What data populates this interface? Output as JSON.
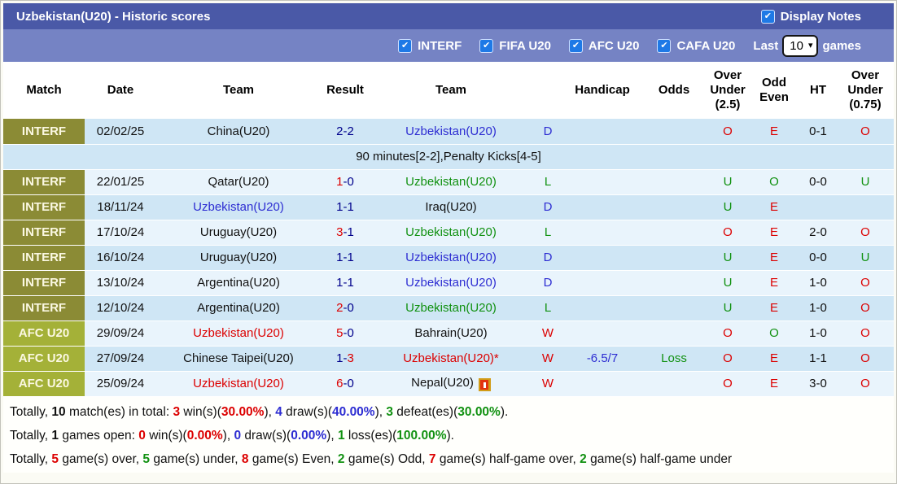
{
  "title_bar": {
    "title": "Uzbekistan(U20) - Historic scores",
    "display_notes_label": "Display Notes",
    "display_notes_checked": true
  },
  "filter_bar": {
    "filters": [
      {
        "label": "INTERF",
        "checked": true
      },
      {
        "label": "FIFA U20",
        "checked": true
      },
      {
        "label": "AFC U20",
        "checked": true
      },
      {
        "label": "CAFA U20",
        "checked": true
      }
    ],
    "last_label": "Last",
    "last_games_value": "10",
    "games_label": "games"
  },
  "colors": {
    "topbar": "#4a59a7",
    "filterbar": "#7583c4",
    "badge_interf": "#8b8b35",
    "badge_afc": "#a4b138",
    "row_blue": "#cfe6f5",
    "row_pale": "#e9f4fc",
    "win_red": "#dc0000",
    "loss_green": "#119111",
    "draw_blue": "#2d2dd2",
    "score_navy": "#00008c",
    "checkbox_blue": "#1e79e6"
  },
  "table": {
    "headers": [
      "Match",
      "Date",
      "Team",
      "Result",
      "Team",
      "",
      "Handicap",
      "Odds",
      "Over Under (2.5)",
      "Odd Even",
      "HT",
      "Over Under (0.75)"
    ],
    "rows": [
      {
        "bg": "blue",
        "badge": "INTERF",
        "badge_type": "interf",
        "date": "02/02/25",
        "team1": {
          "t": "China(U20)",
          "c": "black"
        },
        "score": {
          "h": "2",
          "a": "2",
          "hc": "navy",
          "ac": "navy"
        },
        "team2": {
          "t": "Uzbekistan(U20)",
          "c": "blue"
        },
        "wdl": {
          "t": "D",
          "c": "blue"
        },
        "handicap": {
          "t": "",
          "c": "blue"
        },
        "odds": {
          "t": "",
          "c": "green"
        },
        "ou25": {
          "t": "O",
          "c": "red"
        },
        "oddeven": {
          "t": "E",
          "c": "red"
        },
        "ht": "0-1",
        "ou075": {
          "t": "O",
          "c": "red"
        }
      },
      {
        "type": "note",
        "bg": "blue",
        "text": "90 minutes[2-2],Penalty Kicks[4-5]"
      },
      {
        "bg": "pale",
        "badge": "INTERF",
        "badge_type": "interf",
        "date": "22/01/25",
        "team1": {
          "t": "Qatar(U20)",
          "c": "black"
        },
        "score": {
          "h": "1",
          "a": "0",
          "hc": "red",
          "ac": "navy"
        },
        "team2": {
          "t": "Uzbekistan(U20)",
          "c": "green"
        },
        "wdl": {
          "t": "L",
          "c": "green"
        },
        "handicap": {
          "t": "",
          "c": "blue"
        },
        "odds": {
          "t": "",
          "c": "green"
        },
        "ou25": {
          "t": "U",
          "c": "green"
        },
        "oddeven": {
          "t": "O",
          "c": "green"
        },
        "ht": "0-0",
        "ou075": {
          "t": "U",
          "c": "green"
        }
      },
      {
        "bg": "blue",
        "badge": "INTERF",
        "badge_type": "interf",
        "date": "18/11/24",
        "team1": {
          "t": "Uzbekistan(U20)",
          "c": "blue"
        },
        "score": {
          "h": "1",
          "a": "1",
          "hc": "navy",
          "ac": "navy"
        },
        "team2": {
          "t": "Iraq(U20)",
          "c": "black"
        },
        "wdl": {
          "t": "D",
          "c": "blue"
        },
        "handicap": {
          "t": "",
          "c": "blue"
        },
        "odds": {
          "t": "",
          "c": "green"
        },
        "ou25": {
          "t": "U",
          "c": "green"
        },
        "oddeven": {
          "t": "E",
          "c": "red"
        },
        "ht": "",
        "ou075": {
          "t": "",
          "c": "red"
        }
      },
      {
        "bg": "pale",
        "badge": "INTERF",
        "badge_type": "interf",
        "date": "17/10/24",
        "team1": {
          "t": "Uruguay(U20)",
          "c": "black"
        },
        "score": {
          "h": "3",
          "a": "1",
          "hc": "red",
          "ac": "navy"
        },
        "team2": {
          "t": "Uzbekistan(U20)",
          "c": "green"
        },
        "wdl": {
          "t": "L",
          "c": "green"
        },
        "handicap": {
          "t": "",
          "c": "blue"
        },
        "odds": {
          "t": "",
          "c": "green"
        },
        "ou25": {
          "t": "O",
          "c": "red"
        },
        "oddeven": {
          "t": "E",
          "c": "red"
        },
        "ht": "2-0",
        "ou075": {
          "t": "O",
          "c": "red"
        }
      },
      {
        "bg": "blue",
        "badge": "INTERF",
        "badge_type": "interf",
        "date": "16/10/24",
        "team1": {
          "t": "Uruguay(U20)",
          "c": "black"
        },
        "score": {
          "h": "1",
          "a": "1",
          "hc": "navy",
          "ac": "navy"
        },
        "team2": {
          "t": "Uzbekistan(U20)",
          "c": "blue"
        },
        "wdl": {
          "t": "D",
          "c": "blue"
        },
        "handicap": {
          "t": "",
          "c": "blue"
        },
        "odds": {
          "t": "",
          "c": "green"
        },
        "ou25": {
          "t": "U",
          "c": "green"
        },
        "oddeven": {
          "t": "E",
          "c": "red"
        },
        "ht": "0-0",
        "ou075": {
          "t": "U",
          "c": "green"
        }
      },
      {
        "bg": "pale",
        "badge": "INTERF",
        "badge_type": "interf",
        "date": "13/10/24",
        "team1": {
          "t": "Argentina(U20)",
          "c": "black"
        },
        "score": {
          "h": "1",
          "a": "1",
          "hc": "navy",
          "ac": "navy"
        },
        "team2": {
          "t": "Uzbekistan(U20)",
          "c": "blue"
        },
        "wdl": {
          "t": "D",
          "c": "blue"
        },
        "handicap": {
          "t": "",
          "c": "blue"
        },
        "odds": {
          "t": "",
          "c": "green"
        },
        "ou25": {
          "t": "U",
          "c": "green"
        },
        "oddeven": {
          "t": "E",
          "c": "red"
        },
        "ht": "1-0",
        "ou075": {
          "t": "O",
          "c": "red"
        }
      },
      {
        "bg": "blue",
        "badge": "INTERF",
        "badge_type": "interf",
        "date": "12/10/24",
        "team1": {
          "t": "Argentina(U20)",
          "c": "black"
        },
        "score": {
          "h": "2",
          "a": "0",
          "hc": "red",
          "ac": "navy"
        },
        "team2": {
          "t": "Uzbekistan(U20)",
          "c": "green"
        },
        "wdl": {
          "t": "L",
          "c": "green"
        },
        "handicap": {
          "t": "",
          "c": "blue"
        },
        "odds": {
          "t": "",
          "c": "green"
        },
        "ou25": {
          "t": "U",
          "c": "green"
        },
        "oddeven": {
          "t": "E",
          "c": "red"
        },
        "ht": "1-0",
        "ou075": {
          "t": "O",
          "c": "red"
        }
      },
      {
        "bg": "pale",
        "badge": "AFC U20",
        "badge_type": "afc",
        "date": "29/09/24",
        "team1": {
          "t": "Uzbekistan(U20)",
          "c": "red"
        },
        "score": {
          "h": "5",
          "a": "0",
          "hc": "red",
          "ac": "navy"
        },
        "team2": {
          "t": "Bahrain(U20)",
          "c": "black"
        },
        "wdl": {
          "t": "W",
          "c": "red"
        },
        "handicap": {
          "t": "",
          "c": "blue"
        },
        "odds": {
          "t": "",
          "c": "green"
        },
        "ou25": {
          "t": "O",
          "c": "red"
        },
        "oddeven": {
          "t": "O",
          "c": "green"
        },
        "ht": "1-0",
        "ou075": {
          "t": "O",
          "c": "red"
        }
      },
      {
        "bg": "blue",
        "badge": "AFC U20",
        "badge_type": "afc",
        "date": "27/09/24",
        "team1": {
          "t": "Chinese Taipei(U20)",
          "c": "black"
        },
        "score": {
          "h": "1",
          "a": "3",
          "hc": "navy",
          "ac": "red"
        },
        "team2": {
          "t": "Uzbekistan(U20)*",
          "c": "red"
        },
        "wdl": {
          "t": "W",
          "c": "red"
        },
        "handicap": {
          "t": "-6.5/7",
          "c": "blue"
        },
        "odds": {
          "t": "Loss",
          "c": "green"
        },
        "ou25": {
          "t": "O",
          "c": "red"
        },
        "oddeven": {
          "t": "E",
          "c": "red"
        },
        "ht": "1-1",
        "ou075": {
          "t": "O",
          "c": "red"
        }
      },
      {
        "bg": "pale",
        "badge": "AFC U20",
        "badge_type": "afc",
        "date": "25/09/24",
        "team1": {
          "t": "Uzbekistan(U20)",
          "c": "red"
        },
        "score": {
          "h": "6",
          "a": "0",
          "hc": "red",
          "ac": "navy"
        },
        "team2": {
          "t": "Nepal(U20)",
          "c": "black",
          "icon": "red-card"
        },
        "wdl": {
          "t": "W",
          "c": "red"
        },
        "handicap": {
          "t": "",
          "c": "blue"
        },
        "odds": {
          "t": "",
          "c": "green"
        },
        "ou25": {
          "t": "O",
          "c": "red"
        },
        "oddeven": {
          "t": "E",
          "c": "red"
        },
        "ht": "3-0",
        "ou075": {
          "t": "O",
          "c": "red"
        }
      }
    ]
  },
  "summary": {
    "lines": [
      [
        {
          "t": "Totally, ",
          "c": "black",
          "b": 0
        },
        {
          "t": "10",
          "c": "black",
          "b": 1
        },
        {
          "t": " match(es) in total: ",
          "c": "black",
          "b": 0
        },
        {
          "t": "3",
          "c": "red",
          "b": 1
        },
        {
          "t": " win(s)(",
          "c": "black",
          "b": 0
        },
        {
          "t": "30.00%",
          "c": "red",
          "b": 1
        },
        {
          "t": "), ",
          "c": "black",
          "b": 0
        },
        {
          "t": "4",
          "c": "blue",
          "b": 1
        },
        {
          "t": " draw(s)(",
          "c": "black",
          "b": 0
        },
        {
          "t": "40.00%",
          "c": "blue",
          "b": 1
        },
        {
          "t": "), ",
          "c": "black",
          "b": 0
        },
        {
          "t": "3",
          "c": "green",
          "b": 1
        },
        {
          "t": " defeat(es)(",
          "c": "black",
          "b": 0
        },
        {
          "t": "30.00%",
          "c": "green",
          "b": 1
        },
        {
          "t": ").",
          "c": "black",
          "b": 0
        }
      ],
      [
        {
          "t": "Totally, ",
          "c": "black",
          "b": 0
        },
        {
          "t": "1",
          "c": "black",
          "b": 1
        },
        {
          "t": " games open: ",
          "c": "black",
          "b": 0
        },
        {
          "t": "0",
          "c": "red",
          "b": 1
        },
        {
          "t": " win(s)(",
          "c": "black",
          "b": 0
        },
        {
          "t": "0.00%",
          "c": "red",
          "b": 1
        },
        {
          "t": "), ",
          "c": "black",
          "b": 0
        },
        {
          "t": "0",
          "c": "blue",
          "b": 1
        },
        {
          "t": " draw(s)(",
          "c": "black",
          "b": 0
        },
        {
          "t": "0.00%",
          "c": "blue",
          "b": 1
        },
        {
          "t": "), ",
          "c": "black",
          "b": 0
        },
        {
          "t": "1",
          "c": "green",
          "b": 1
        },
        {
          "t": " loss(es)(",
          "c": "black",
          "b": 0
        },
        {
          "t": "100.00%",
          "c": "green",
          "b": 1
        },
        {
          "t": ").",
          "c": "black",
          "b": 0
        }
      ],
      [
        {
          "t": "Totally, ",
          "c": "black",
          "b": 0
        },
        {
          "t": "5",
          "c": "red",
          "b": 1
        },
        {
          "t": " game(s) over, ",
          "c": "black",
          "b": 0
        },
        {
          "t": "5",
          "c": "green",
          "b": 1
        },
        {
          "t": " game(s) under, ",
          "c": "black",
          "b": 0
        },
        {
          "t": "8",
          "c": "red",
          "b": 1
        },
        {
          "t": " game(s) Even, ",
          "c": "black",
          "b": 0
        },
        {
          "t": "2",
          "c": "green",
          "b": 1
        },
        {
          "t": " game(s) Odd, ",
          "c": "black",
          "b": 0
        },
        {
          "t": "7",
          "c": "red",
          "b": 1
        },
        {
          "t": " game(s) half-game over, ",
          "c": "black",
          "b": 0
        },
        {
          "t": "2",
          "c": "green",
          "b": 1
        },
        {
          "t": " game(s) half-game under",
          "c": "black",
          "b": 0
        }
      ]
    ]
  }
}
